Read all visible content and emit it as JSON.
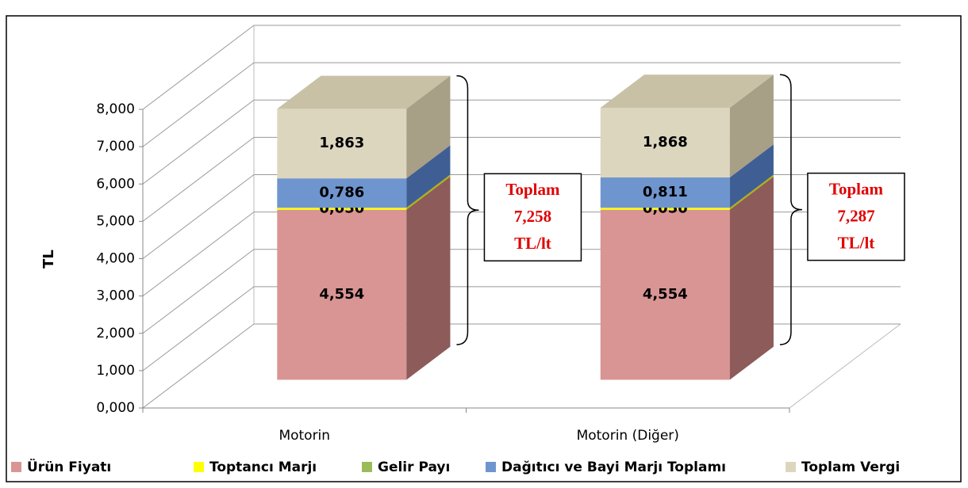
{
  "chart_data": {
    "type": "bar3d_stacked",
    "y_label": "TL",
    "categories": [
      "Motorin",
      "Motorin (Diğer)"
    ],
    "series": [
      {
        "name": "Ürün Fiyatı",
        "color": "#d99594",
        "side": "#8c5b5a",
        "values": [
          4.554,
          4.554
        ],
        "value_labels": [
          "4,554",
          "4,554"
        ]
      },
      {
        "name": "Toptancı Marjı",
        "color": "#ffff00",
        "side": "#b3b300",
        "values": [
          0.05,
          0.05
        ],
        "value_labels": [
          "0,050",
          "0,050"
        ]
      },
      {
        "name": "Gelir Payı",
        "color": "#9bbb59",
        "side": "#6b8a3a",
        "values": [
          0.005,
          0.004
        ]
      },
      {
        "name": "Dağıtıcı ve Bayi Marjı Toplamı",
        "color": "#6f95cf",
        "side": "#3f5f94",
        "values": [
          0.786,
          0.811
        ],
        "value_labels": [
          "0,786",
          "0,811"
        ]
      },
      {
        "name": "Toplam Vergi",
        "color": "#ddd6bf",
        "side": "#a79f86",
        "values": [
          1.863,
          1.868
        ],
        "value_labels": [
          "1,863",
          "1,868"
        ]
      }
    ],
    "annotations": [
      {
        "lines": [
          "Toplam",
          "7,258",
          "TL/lt"
        ]
      },
      {
        "lines": [
          "Toplam",
          "7,287",
          "TL/lt"
        ]
      }
    ],
    "ylim": [
      0,
      8
    ],
    "yticks": [
      {
        "value": 0,
        "label": "0,000"
      },
      {
        "value": 1,
        "label": "1,000"
      },
      {
        "value": 2,
        "label": "2,000"
      },
      {
        "value": 3,
        "label": "3,000"
      },
      {
        "value": 4,
        "label": "4,000"
      },
      {
        "value": 5,
        "label": "5,000"
      },
      {
        "value": 6,
        "label": "6,000"
      },
      {
        "value": 7,
        "label": "7,000"
      },
      {
        "value": 8,
        "label": "8,000"
      }
    ],
    "grid": true,
    "legend": "bottom"
  }
}
